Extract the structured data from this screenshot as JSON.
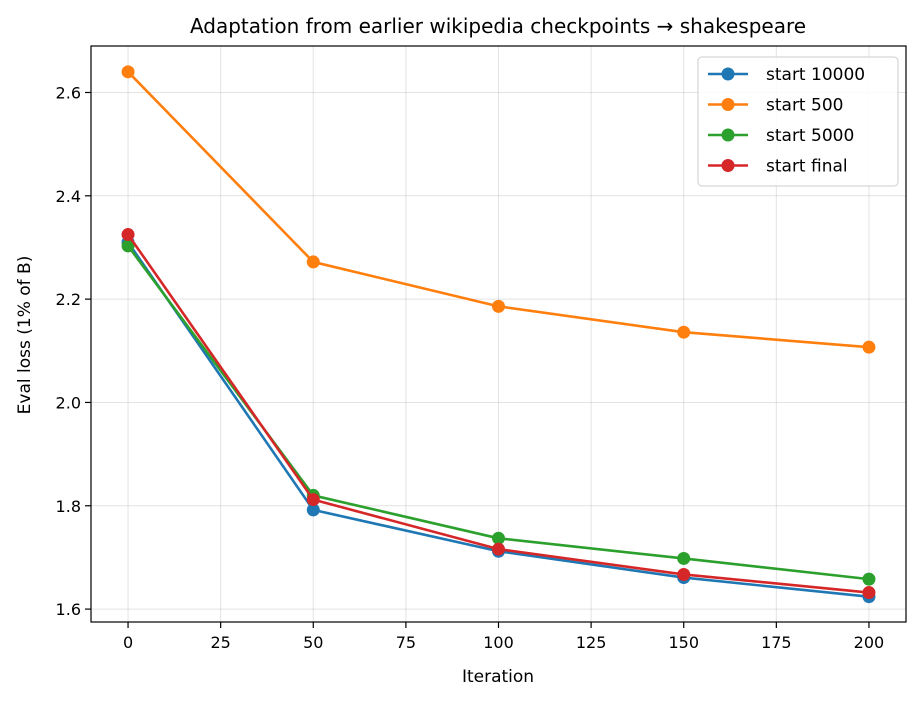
{
  "chart_data": {
    "type": "line",
    "title": "Adaptation from earlier wikipedia checkpoints → shakespeare",
    "xlabel": "Iteration",
    "ylabel": "Eval loss (1% of B)",
    "x": [
      0,
      50,
      100,
      150,
      200
    ],
    "xlim": [
      -10,
      210
    ],
    "ylim": [
      1.575,
      2.69
    ],
    "xticks": [
      0,
      25,
      50,
      75,
      100,
      125,
      150,
      175,
      200
    ],
    "yticks": [
      1.6,
      1.8,
      2.0,
      2.2,
      2.4,
      2.6
    ],
    "xtick_labels": [
      "0",
      "25",
      "50",
      "75",
      "100",
      "125",
      "150",
      "175",
      "200"
    ],
    "ytick_labels": [
      "1.6",
      "1.8",
      "2.0",
      "2.2",
      "2.4",
      "2.6"
    ],
    "grid": true,
    "legend_position": "top-right",
    "series": [
      {
        "name": "start 10000",
        "color": "#1f77b4",
        "values": [
          2.31,
          1.792,
          1.712,
          1.661,
          1.624
        ]
      },
      {
        "name": "start 500",
        "color": "#ff7f0e",
        "values": [
          2.64,
          2.272,
          2.186,
          2.136,
          2.107
        ]
      },
      {
        "name": "start 5000",
        "color": "#2ca02c",
        "values": [
          2.303,
          1.82,
          1.737,
          1.698,
          1.658
        ]
      },
      {
        "name": "start final",
        "color": "#d62728",
        "values": [
          2.325,
          1.812,
          1.716,
          1.667,
          1.632
        ]
      }
    ]
  }
}
